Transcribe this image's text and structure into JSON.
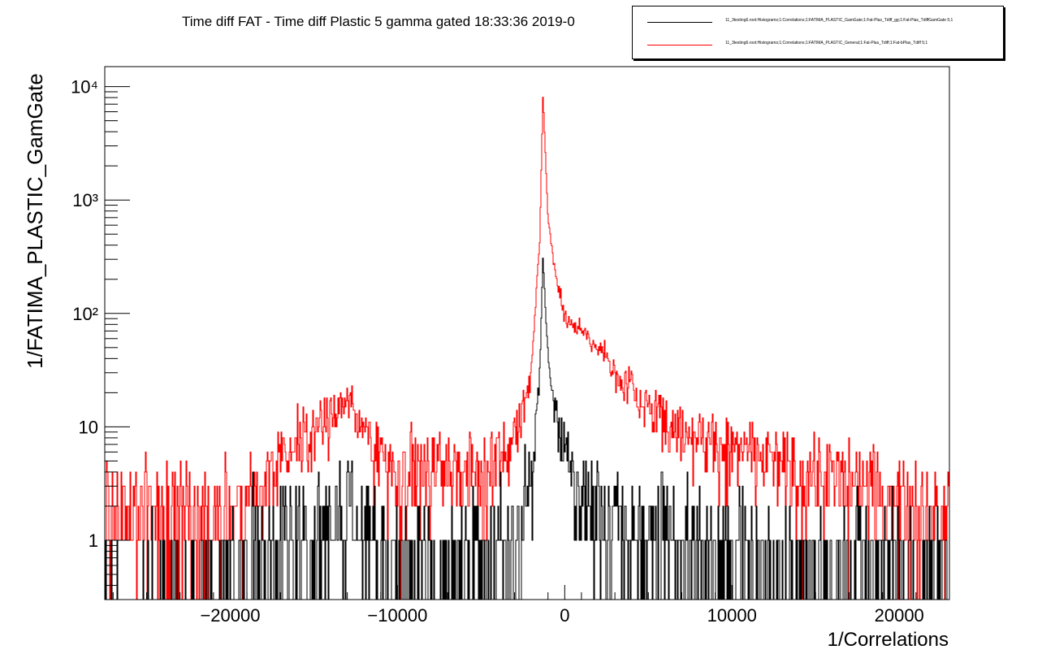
{
  "title": "Time diff FAT - Time diff Plastic 5 gamma gated  18:33:36  2019-0",
  "legend": [
    {
      "label": "11_3testing6.root:Histograms;1:Correlations;1:FATIMA_PLASTIC_GamGate;1:Fat-Plas_Tdiff_gg;1:Fat-Plas_TdiffGamGate 5;1",
      "color": "#000000"
    },
    {
      "label": "11_3testing6.root:Histograms;1:Correlations;1:FATIMA_PLASTIC_General;1:Fat-Plas_Tdiff;1:Fat-bPlas_Tdiff 5;1",
      "color": "#ff0000"
    }
  ],
  "chart_data": {
    "type": "histogram",
    "title": "Time diff FAT - Time diff Plastic 5 gamma gated  18:33:36  2019-0",
    "xlabel": "1/Correlations",
    "ylabel": "1/FATIMA_PLASTIC_GamGate",
    "xlim": [
      -27500,
      23000
    ],
    "ylim": [
      0.3,
      15000
    ],
    "yscale": "log",
    "xticks": [
      -20000,
      -10000,
      0,
      10000,
      20000
    ],
    "xtick_labels": [
      "−20000",
      "−10000",
      "0",
      "10000",
      "20000"
    ],
    "yticks": [
      1,
      10,
      100,
      1000,
      10000
    ],
    "ytick_labels": [
      "1",
      "10",
      "10²",
      "10³",
      "10⁴"
    ],
    "grid": false,
    "legend_position": "top-right",
    "series": [
      {
        "name": "11_3testing6.root:Histograms;1:Correlations;1:FATIMA_PLASTIC_GamGate;1:Fat-Plas_Tdiff_gg;1:Fat-Plas_TdiffGamGate 5;1",
        "color": "#000000",
        "features": {
          "peak_x": -1300,
          "peak_y": 300,
          "baseline": 1,
          "max_noise": 3
        },
        "x": [
          -27500,
          -20000,
          -13000,
          -10000,
          -5000,
          -3000,
          -2000,
          -1500,
          -1300,
          -1000,
          -500,
          0,
          2000,
          5000,
          8000,
          12000,
          18000,
          23000
        ],
        "y": [
          0,
          0.5,
          2,
          0.6,
          0.7,
          1,
          3,
          30,
          300,
          40,
          12,
          6,
          2,
          1.5,
          1,
          0.6,
          0.4,
          0.3
        ]
      },
      {
        "name": "11_3testing6.root:Histograms;1:Correlations;1:FATIMA_PLASTIC_General;1:Fat-Plas_Tdiff;1:Fat-bPlas_Tdiff 5;1",
        "color": "#ff0000",
        "features": {
          "peak_x": -1300,
          "peak_y": 8500,
          "baseline": 2,
          "side_peak_x": -13000,
          "side_peak_y": 19
        },
        "x": [
          -27500,
          -20000,
          -13000,
          -10000,
          -7000,
          -5000,
          -3000,
          -2000,
          -1500,
          -1300,
          -1000,
          -500,
          0,
          2000,
          5000,
          8000,
          12000,
          18000,
          23000
        ],
        "y": [
          2,
          2,
          19,
          3,
          5,
          4,
          8,
          30,
          400,
          8500,
          700,
          200,
          90,
          50,
          15,
          8,
          5,
          3,
          2
        ]
      }
    ]
  }
}
